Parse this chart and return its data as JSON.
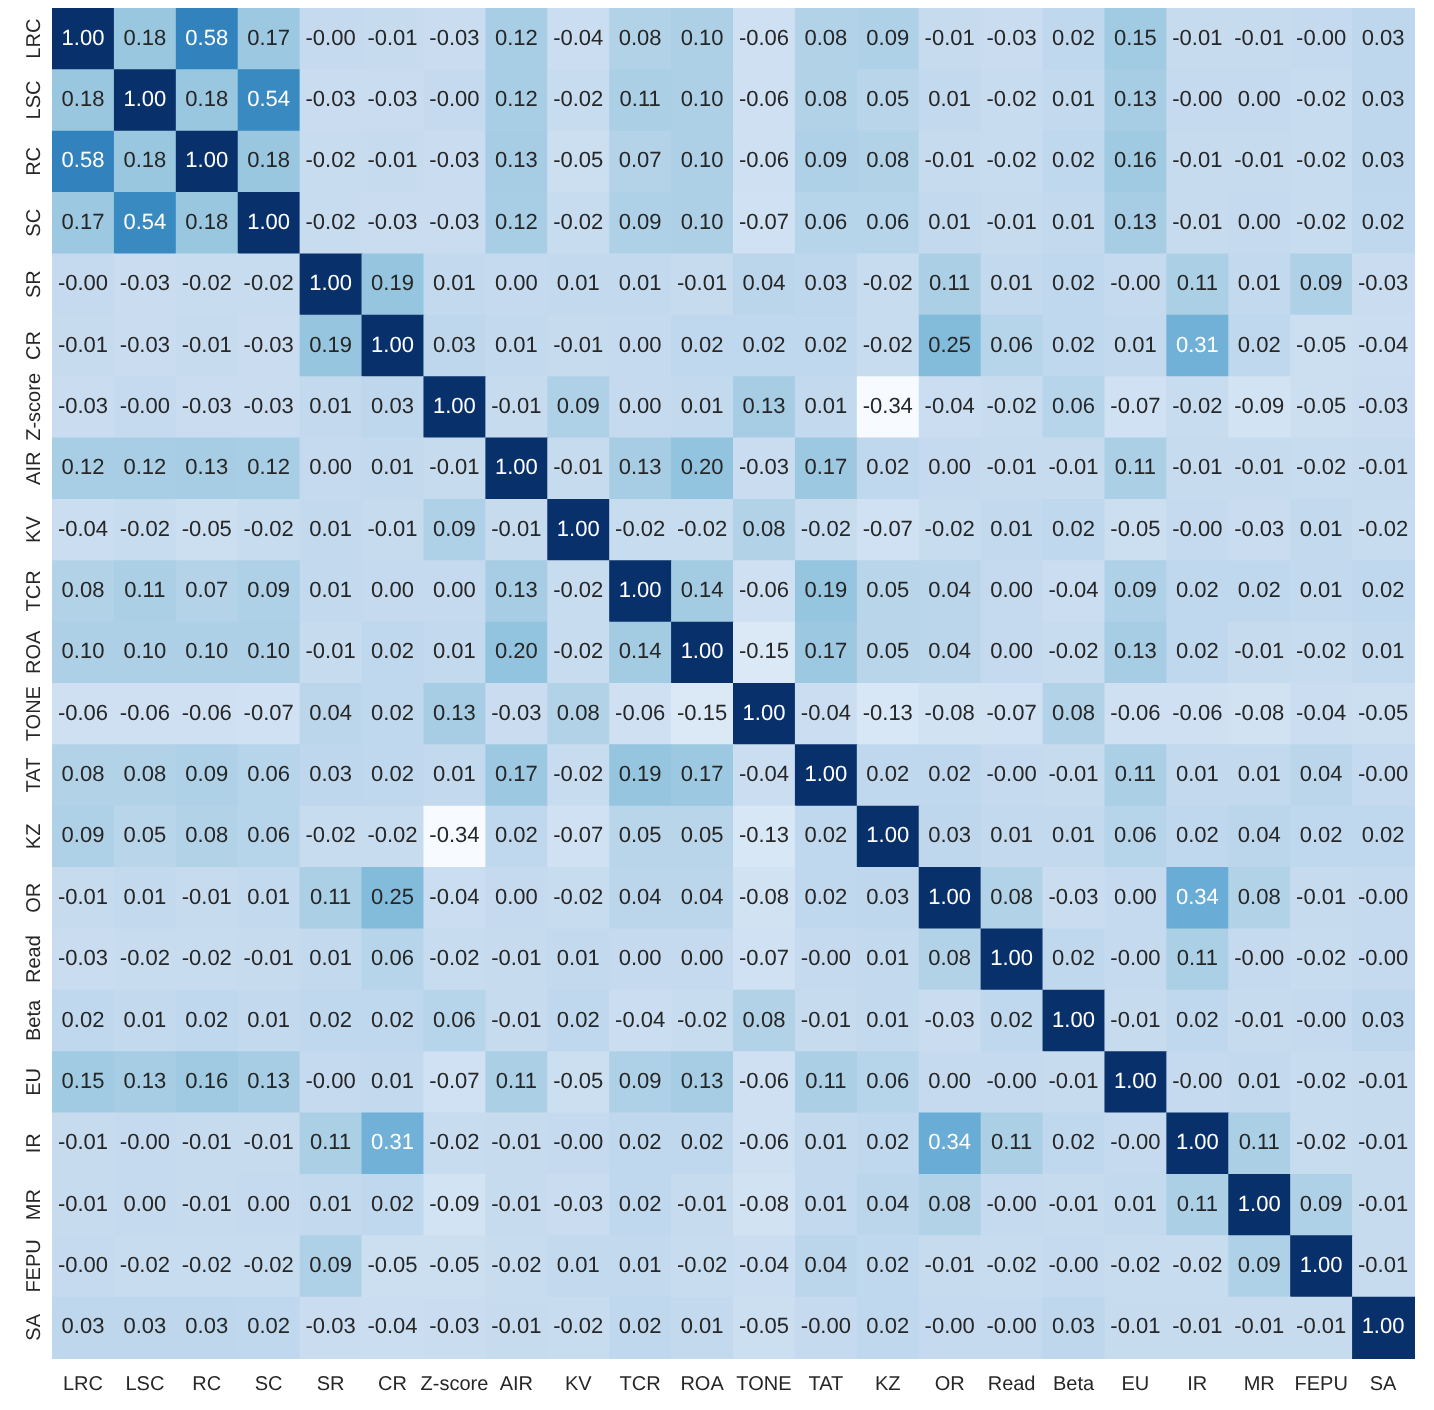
{
  "chart_data": {
    "type": "heatmap",
    "data_labels": true,
    "categories": [
      "LRC",
      "LSC",
      "RC",
      "SC",
      "SR",
      "CR",
      "Z-score",
      "AIR",
      "KV",
      "TCR",
      "ROA",
      "TONE",
      "TAT",
      "KZ",
      "OR",
      "Read",
      "Beta",
      "EU",
      "IR",
      "MR",
      "FEPU",
      "SA"
    ],
    "y_categories": [
      "LRC",
      "LSC",
      "RC",
      "SC",
      "SR",
      "CR",
      "Z-score",
      "AIR",
      "KV",
      "TCR",
      "ROA",
      "TONE",
      "TAT",
      "KZ",
      "OR",
      "Read",
      "Beta",
      "EU",
      "IR",
      "MR",
      "FEPU",
      "SA"
    ],
    "cells": [
      [
        1.0,
        0.18,
        0.58,
        0.17,
        0,
        -0.01,
        -0.03,
        0.12,
        -0.04,
        0.08,
        0.1,
        -0.06,
        0.08,
        0.09,
        -0.01,
        -0.03,
        0.02,
        0.15,
        -0.01,
        -0.01,
        0,
        0.03
      ],
      [
        0.18,
        1.0,
        0.18,
        0.54,
        -0.03,
        -0.03,
        0,
        0.12,
        -0.02,
        0.11,
        0.1,
        -0.06,
        0.08,
        0.05,
        0.01,
        -0.02,
        0.01,
        0.13,
        0,
        0.0,
        -0.02,
        0.03
      ],
      [
        0.58,
        0.18,
        1.0,
        0.18,
        -0.02,
        -0.01,
        -0.03,
        0.13,
        -0.05,
        0.07,
        0.1,
        -0.06,
        0.09,
        0.08,
        -0.01,
        -0.02,
        0.02,
        0.16,
        -0.01,
        -0.01,
        -0.02,
        0.03
      ],
      [
        0.17,
        0.54,
        0.18,
        1.0,
        -0.02,
        -0.03,
        -0.03,
        0.12,
        -0.02,
        0.09,
        0.1,
        -0.07,
        0.06,
        0.06,
        0.01,
        -0.01,
        0.01,
        0.13,
        -0.01,
        0.0,
        -0.02,
        0.02
      ],
      [
        0,
        -0.03,
        -0.02,
        -0.02,
        1.0,
        0.19,
        0.01,
        0.0,
        0.01,
        0.01,
        -0.01,
        0.04,
        0.03,
        -0.02,
        0.11,
        0.01,
        0.02,
        0,
        0.11,
        0.01,
        0.09,
        -0.03
      ],
      [
        -0.01,
        -0.03,
        -0.01,
        -0.03,
        0.19,
        1.0,
        0.03,
        0.01,
        -0.01,
        0.0,
        0.02,
        0.02,
        0.02,
        -0.02,
        0.25,
        0.06,
        0.02,
        0.01,
        0.31,
        0.02,
        -0.05,
        -0.04
      ],
      [
        -0.03,
        0,
        -0.03,
        -0.03,
        0.01,
        0.03,
        1.0,
        -0.01,
        0.09,
        0.0,
        0.01,
        0.13,
        0.01,
        -0.34,
        -0.04,
        -0.02,
        0.06,
        -0.07,
        -0.02,
        -0.09,
        -0.05,
        -0.03
      ],
      [
        0.12,
        0.12,
        0.13,
        0.12,
        0.0,
        0.01,
        -0.01,
        1.0,
        -0.01,
        0.13,
        0.2,
        -0.03,
        0.17,
        0.02,
        0.0,
        -0.01,
        -0.01,
        0.11,
        -0.01,
        -0.01,
        -0.02,
        -0.01
      ],
      [
        -0.04,
        -0.02,
        -0.05,
        -0.02,
        0.01,
        -0.01,
        0.09,
        -0.01,
        1.0,
        -0.02,
        -0.02,
        0.08,
        -0.02,
        -0.07,
        -0.02,
        0.01,
        0.02,
        -0.05,
        0,
        -0.03,
        0.01,
        -0.02
      ],
      [
        0.08,
        0.11,
        0.07,
        0.09,
        0.01,
        0.0,
        0.0,
        0.13,
        -0.02,
        1.0,
        0.14,
        -0.06,
        0.19,
        0.05,
        0.04,
        0.0,
        -0.04,
        0.09,
        0.02,
        0.02,
        0.01,
        0.02
      ],
      [
        0.1,
        0.1,
        0.1,
        0.1,
        -0.01,
        0.02,
        0.01,
        0.2,
        -0.02,
        0.14,
        1.0,
        -0.15,
        0.17,
        0.05,
        0.04,
        0.0,
        -0.02,
        0.13,
        0.02,
        -0.01,
        -0.02,
        0.01
      ],
      [
        -0.06,
        -0.06,
        -0.06,
        -0.07,
        0.04,
        0.02,
        0.13,
        -0.03,
        0.08,
        -0.06,
        -0.15,
        1.0,
        -0.04,
        -0.13,
        -0.08,
        -0.07,
        0.08,
        -0.06,
        -0.06,
        -0.08,
        -0.04,
        -0.05
      ],
      [
        0.08,
        0.08,
        0.09,
        0.06,
        0.03,
        0.02,
        0.01,
        0.17,
        -0.02,
        0.19,
        0.17,
        -0.04,
        1.0,
        0.02,
        0.02,
        0,
        -0.01,
        0.11,
        0.01,
        0.01,
        0.04,
        0
      ],
      [
        0.09,
        0.05,
        0.08,
        0.06,
        -0.02,
        -0.02,
        -0.34,
        0.02,
        -0.07,
        0.05,
        0.05,
        -0.13,
        0.02,
        1.0,
        0.03,
        0.01,
        0.01,
        0.06,
        0.02,
        0.04,
        0.02,
        0.02
      ],
      [
        -0.01,
        0.01,
        -0.01,
        0.01,
        0.11,
        0.25,
        -0.04,
        0.0,
        -0.02,
        0.04,
        0.04,
        -0.08,
        0.02,
        0.03,
        1.0,
        0.08,
        -0.03,
        0.0,
        0.34,
        0.08,
        -0.01,
        0
      ],
      [
        -0.03,
        -0.02,
        -0.02,
        -0.01,
        0.01,
        0.06,
        -0.02,
        -0.01,
        0.01,
        0.0,
        0.0,
        -0.07,
        0,
        0.01,
        0.08,
        1.0,
        0.02,
        0,
        0.11,
        0,
        -0.02,
        0
      ],
      [
        0.02,
        0.01,
        0.02,
        0.01,
        0.02,
        0.02,
        0.06,
        -0.01,
        0.02,
        -0.04,
        -0.02,
        0.08,
        -0.01,
        0.01,
        -0.03,
        0.02,
        1.0,
        -0.01,
        0.02,
        -0.01,
        0,
        0.03
      ],
      [
        0.15,
        0.13,
        0.16,
        0.13,
        0,
        0.01,
        -0.07,
        0.11,
        -0.05,
        0.09,
        0.13,
        -0.06,
        0.11,
        0.06,
        0.0,
        0,
        -0.01,
        1.0,
        0,
        0.01,
        -0.02,
        -0.01
      ],
      [
        -0.01,
        0,
        -0.01,
        -0.01,
        0.11,
        0.31,
        -0.02,
        -0.01,
        0,
        0.02,
        0.02,
        -0.06,
        0.01,
        0.02,
        0.34,
        0.11,
        0.02,
        0,
        1.0,
        0.11,
        -0.02,
        -0.01
      ],
      [
        -0.01,
        0.0,
        -0.01,
        0.0,
        0.01,
        0.02,
        -0.09,
        -0.01,
        -0.03,
        0.02,
        -0.01,
        -0.08,
        0.01,
        0.04,
        0.08,
        0,
        -0.01,
        0.01,
        0.11,
        1.0,
        0.09,
        -0.01
      ],
      [
        0,
        -0.02,
        -0.02,
        -0.02,
        0.09,
        -0.05,
        -0.05,
        -0.02,
        0.01,
        0.01,
        -0.02,
        -0.04,
        0.04,
        0.02,
        -0.01,
        -0.02,
        0,
        -0.02,
        -0.02,
        0.09,
        1.0,
        -0.01
      ],
      [
        0.03,
        0.03,
        0.03,
        0.02,
        -0.03,
        -0.04,
        -0.03,
        -0.01,
        -0.02,
        0.02,
        0.01,
        -0.05,
        0,
        0.02,
        0,
        0,
        0.03,
        -0.01,
        -0.01,
        -0.01,
        -0.01,
        1.0
      ]
    ],
    "cell_labels": [
      [
        "1.00",
        "0.18",
        "0.58",
        "0.17",
        "-0.00",
        "-0.01",
        "-0.03",
        "0.12",
        "-0.04",
        "0.08",
        "0.10",
        "-0.06",
        "0.08",
        "0.09",
        "-0.01",
        "-0.03",
        "0.02",
        "0.15",
        "-0.01",
        "-0.01",
        "-0.00",
        "0.03"
      ],
      [
        "0.18",
        "1.00",
        "0.18",
        "0.54",
        "-0.03",
        "-0.03",
        "-0.00",
        "0.12",
        "-0.02",
        "0.11",
        "0.10",
        "-0.06",
        "0.08",
        "0.05",
        "0.01",
        "-0.02",
        "0.01",
        "0.13",
        "-0.00",
        "0.00",
        "-0.02",
        "0.03"
      ],
      [
        "0.58",
        "0.18",
        "1.00",
        "0.18",
        "-0.02",
        "-0.01",
        "-0.03",
        "0.13",
        "-0.05",
        "0.07",
        "0.10",
        "-0.06",
        "0.09",
        "0.08",
        "-0.01",
        "-0.02",
        "0.02",
        "0.16",
        "-0.01",
        "-0.01",
        "-0.02",
        "0.03"
      ],
      [
        "0.17",
        "0.54",
        "0.18",
        "1.00",
        "-0.02",
        "-0.03",
        "-0.03",
        "0.12",
        "-0.02",
        "0.09",
        "0.10",
        "-0.07",
        "0.06",
        "0.06",
        "0.01",
        "-0.01",
        "0.01",
        "0.13",
        "-0.01",
        "0.00",
        "-0.02",
        "0.02"
      ],
      [
        "-0.00",
        "-0.03",
        "-0.02",
        "-0.02",
        "1.00",
        "0.19",
        "0.01",
        "0.00",
        "0.01",
        "0.01",
        "-0.01",
        "0.04",
        "0.03",
        "-0.02",
        "0.11",
        "0.01",
        "0.02",
        "-0.00",
        "0.11",
        "0.01",
        "0.09",
        "-0.03"
      ],
      [
        "-0.01",
        "-0.03",
        "-0.01",
        "-0.03",
        "0.19",
        "1.00",
        "0.03",
        "0.01",
        "-0.01",
        "0.00",
        "0.02",
        "0.02",
        "0.02",
        "-0.02",
        "0.25",
        "0.06",
        "0.02",
        "0.01",
        "0.31",
        "0.02",
        "-0.05",
        "-0.04"
      ],
      [
        "-0.03",
        "-0.00",
        "-0.03",
        "-0.03",
        "0.01",
        "0.03",
        "1.00",
        "-0.01",
        "0.09",
        "0.00",
        "0.01",
        "0.13",
        "0.01",
        "-0.34",
        "-0.04",
        "-0.02",
        "0.06",
        "-0.07",
        "-0.02",
        "-0.09",
        "-0.05",
        "-0.03"
      ],
      [
        "0.12",
        "0.12",
        "0.13",
        "0.12",
        "0.00",
        "0.01",
        "-0.01",
        "1.00",
        "-0.01",
        "0.13",
        "0.20",
        "-0.03",
        "0.17",
        "0.02",
        "0.00",
        "-0.01",
        "-0.01",
        "0.11",
        "-0.01",
        "-0.01",
        "-0.02",
        "-0.01"
      ],
      [
        "-0.04",
        "-0.02",
        "-0.05",
        "-0.02",
        "0.01",
        "-0.01",
        "0.09",
        "-0.01",
        "1.00",
        "-0.02",
        "-0.02",
        "0.08",
        "-0.02",
        "-0.07",
        "-0.02",
        "0.01",
        "0.02",
        "-0.05",
        "-0.00",
        "-0.03",
        "0.01",
        "-0.02"
      ],
      [
        "0.08",
        "0.11",
        "0.07",
        "0.09",
        "0.01",
        "0.00",
        "0.00",
        "0.13",
        "-0.02",
        "1.00",
        "0.14",
        "-0.06",
        "0.19",
        "0.05",
        "0.04",
        "0.00",
        "-0.04",
        "0.09",
        "0.02",
        "0.02",
        "0.01",
        "0.02"
      ],
      [
        "0.10",
        "0.10",
        "0.10",
        "0.10",
        "-0.01",
        "0.02",
        "0.01",
        "0.20",
        "-0.02",
        "0.14",
        "1.00",
        "-0.15",
        "0.17",
        "0.05",
        "0.04",
        "0.00",
        "-0.02",
        "0.13",
        "0.02",
        "-0.01",
        "-0.02",
        "0.01"
      ],
      [
        "-0.06",
        "-0.06",
        "-0.06",
        "-0.07",
        "0.04",
        "0.02",
        "0.13",
        "-0.03",
        "0.08",
        "-0.06",
        "-0.15",
        "1.00",
        "-0.04",
        "-0.13",
        "-0.08",
        "-0.07",
        "0.08",
        "-0.06",
        "-0.06",
        "-0.08",
        "-0.04",
        "-0.05"
      ],
      [
        "0.08",
        "0.08",
        "0.09",
        "0.06",
        "0.03",
        "0.02",
        "0.01",
        "0.17",
        "-0.02",
        "0.19",
        "0.17",
        "-0.04",
        "1.00",
        "0.02",
        "0.02",
        "-0.00",
        "-0.01",
        "0.11",
        "0.01",
        "0.01",
        "0.04",
        "-0.00"
      ],
      [
        "0.09",
        "0.05",
        "0.08",
        "0.06",
        "-0.02",
        "-0.02",
        "-0.34",
        "0.02",
        "-0.07",
        "0.05",
        "0.05",
        "-0.13",
        "0.02",
        "1.00",
        "0.03",
        "0.01",
        "0.01",
        "0.06",
        "0.02",
        "0.04",
        "0.02",
        "0.02"
      ],
      [
        "-0.01",
        "0.01",
        "-0.01",
        "0.01",
        "0.11",
        "0.25",
        "-0.04",
        "0.00",
        "-0.02",
        "0.04",
        "0.04",
        "-0.08",
        "0.02",
        "0.03",
        "1.00",
        "0.08",
        "-0.03",
        "0.00",
        "0.34",
        "0.08",
        "-0.01",
        "-0.00"
      ],
      [
        "-0.03",
        "-0.02",
        "-0.02",
        "-0.01",
        "0.01",
        "0.06",
        "-0.02",
        "-0.01",
        "0.01",
        "0.00",
        "0.00",
        "-0.07",
        "-0.00",
        "0.01",
        "0.08",
        "1.00",
        "0.02",
        "-0.00",
        "0.11",
        "-0.00",
        "-0.02",
        "-0.00"
      ],
      [
        "0.02",
        "0.01",
        "0.02",
        "0.01",
        "0.02",
        "0.02",
        "0.06",
        "-0.01",
        "0.02",
        "-0.04",
        "-0.02",
        "0.08",
        "-0.01",
        "0.01",
        "-0.03",
        "0.02",
        "1.00",
        "-0.01",
        "0.02",
        "-0.01",
        "-0.00",
        "0.03"
      ],
      [
        "0.15",
        "0.13",
        "0.16",
        "0.13",
        "-0.00",
        "0.01",
        "-0.07",
        "0.11",
        "-0.05",
        "0.09",
        "0.13",
        "-0.06",
        "0.11",
        "0.06",
        "0.00",
        "-0.00",
        "-0.01",
        "1.00",
        "-0.00",
        "0.01",
        "-0.02",
        "-0.01"
      ],
      [
        "-0.01",
        "-0.00",
        "-0.01",
        "-0.01",
        "0.11",
        "0.31",
        "-0.02",
        "-0.01",
        "-0.00",
        "0.02",
        "0.02",
        "-0.06",
        "0.01",
        "0.02",
        "0.34",
        "0.11",
        "0.02",
        "-0.00",
        "1.00",
        "0.11",
        "-0.02",
        "-0.01"
      ],
      [
        "-0.01",
        "0.00",
        "-0.01",
        "0.00",
        "0.01",
        "0.02",
        "-0.09",
        "-0.01",
        "-0.03",
        "0.02",
        "-0.01",
        "-0.08",
        "0.01",
        "0.04",
        "0.08",
        "-0.00",
        "-0.01",
        "0.01",
        "0.11",
        "1.00",
        "0.09",
        "-0.01"
      ],
      [
        "-0.00",
        "-0.02",
        "-0.02",
        "-0.02",
        "0.09",
        "-0.05",
        "-0.05",
        "-0.02",
        "0.01",
        "0.01",
        "-0.02",
        "-0.04",
        "0.04",
        "0.02",
        "-0.01",
        "-0.02",
        "-0.00",
        "-0.02",
        "-0.02",
        "0.09",
        "1.00",
        "-0.01"
      ],
      [
        "0.03",
        "0.03",
        "0.03",
        "0.02",
        "-0.03",
        "-0.04",
        "-0.03",
        "-0.01",
        "-0.02",
        "0.02",
        "0.01",
        "-0.05",
        "-0.00",
        "0.02",
        "-0.00",
        "-0.00",
        "0.03",
        "-0.01",
        "-0.01",
        "-0.01",
        "-0.01",
        "1.00"
      ]
    ]
  }
}
